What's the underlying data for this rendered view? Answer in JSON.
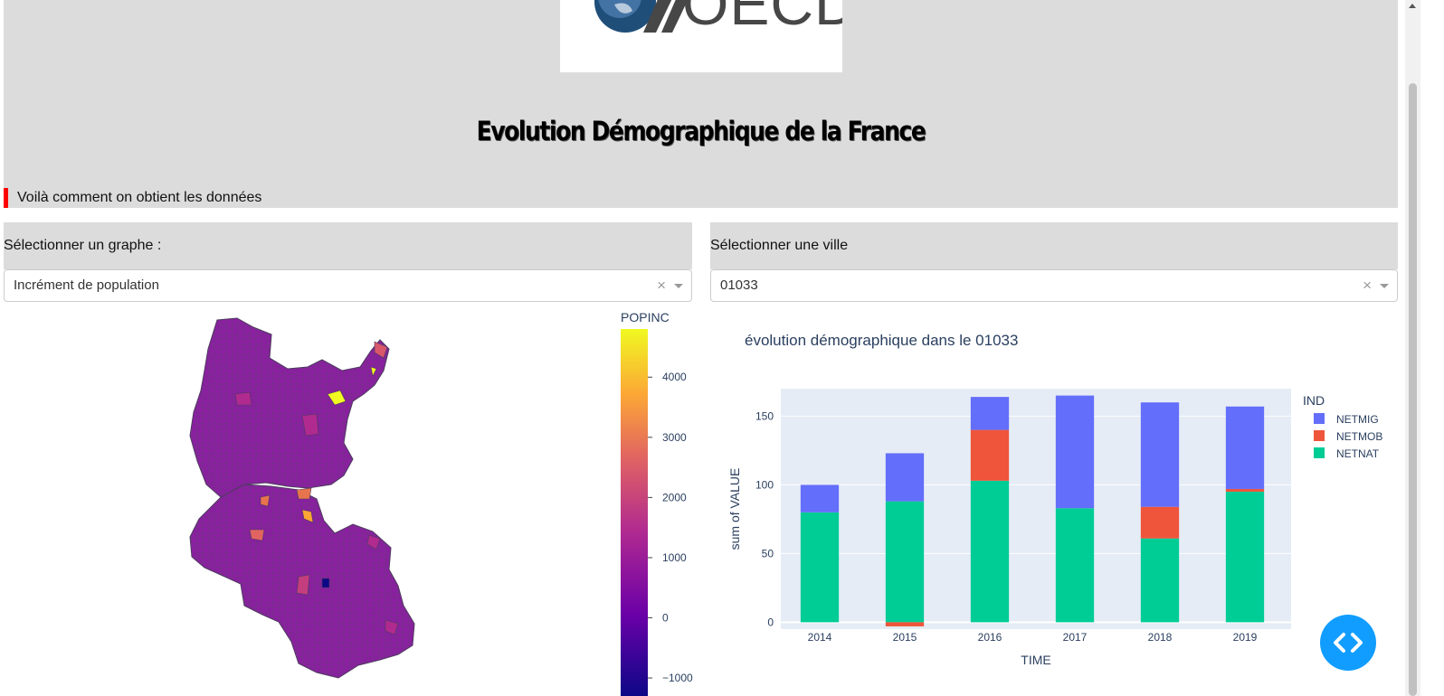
{
  "header": {
    "logo_text": "OECD",
    "title": "Evolution Démographique de la France",
    "note": "Voilà comment on obtient les données"
  },
  "graph_select": {
    "label": "Sélectionner un graphe :",
    "value": "Incrément de population"
  },
  "city_select": {
    "label": "Sélectionner une ville",
    "value": "01033"
  },
  "icons": {
    "clear": "×",
    "fab": "code-icon"
  },
  "map": {
    "colorbar_title": "POPINC",
    "colorbar_ticks": [
      "4000",
      "3000",
      "2000",
      "1000",
      "0",
      "−1000"
    ],
    "colorscale": [
      "#0d0887",
      "#6a00a8",
      "#b12a90",
      "#e16462",
      "#fca636",
      "#f0f921"
    ]
  },
  "chart_data": {
    "type": "bar",
    "title": "évolution démographique dans le 01033",
    "xlabel": "TIME",
    "ylabel": "sum of VALUE",
    "ylim": [
      -5,
      170
    ],
    "y_ticks": [
      0,
      50,
      100,
      150
    ],
    "categories": [
      "2014",
      "2015",
      "2016",
      "2017",
      "2018",
      "2019"
    ],
    "legend_title": "IND",
    "legend_position": "right",
    "barmode": "relative",
    "series": [
      {
        "name": "NETMIG",
        "color": "#636efa",
        "values": [
          20,
          35,
          24,
          82,
          76,
          60
        ]
      },
      {
        "name": "NETMOB",
        "color": "#ef553b",
        "values": [
          0,
          -3,
          37,
          0,
          23,
          2
        ]
      },
      {
        "name": "NETNAT",
        "color": "#00cc96",
        "values": [
          80,
          88,
          103,
          83,
          61,
          95
        ]
      }
    ]
  }
}
